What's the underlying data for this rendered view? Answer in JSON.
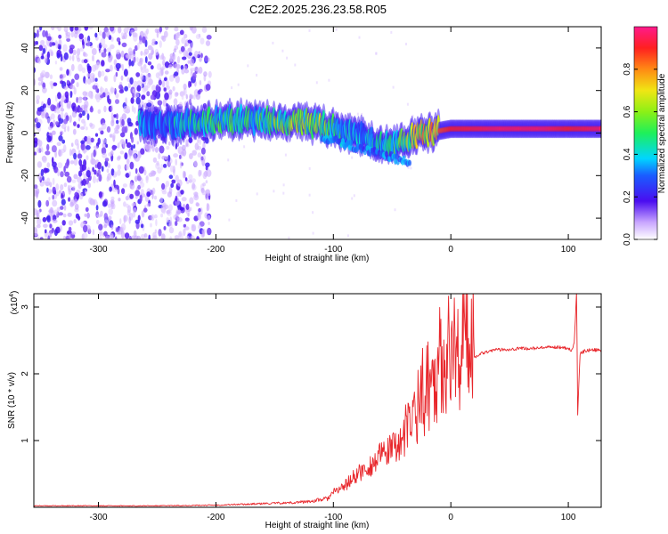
{
  "title": "C2E2.2025.236.23.58.R05",
  "colors": {
    "snr_line": "#e8262b",
    "axis": "#000000",
    "ridge": "#4a1df0"
  },
  "chart_data": [
    {
      "type": "heatmap",
      "xlabel": "Height of straight line (km)",
      "ylabel": "Frequency (Hz)",
      "xlim": [
        -355,
        128
      ],
      "ylim": [
        -50,
        50
      ],
      "xticks": [
        -300,
        -200,
        -100,
        0,
        100
      ],
      "yticks": [
        -40,
        -20,
        0,
        20,
        40
      ],
      "colorbar": {
        "label": "Normalized spectral amplitude",
        "range": [
          0,
          1
        ],
        "ticks": [
          "0.0",
          "0.2",
          "0.4",
          "0.6",
          "0.8"
        ],
        "colormap": "rainbow"
      },
      "noise_region_x": [
        -355,
        -205
      ],
      "ridge": {
        "x": [
          -265,
          -250,
          -230,
          -210,
          -190,
          -170,
          -150,
          -130,
          -110,
          -100,
          -90,
          -80,
          -70,
          -60,
          -50,
          -40,
          -30,
          -20,
          -10,
          0,
          20,
          40,
          60,
          80,
          100,
          128
        ],
        "frequency": [
          5,
          4,
          4,
          5,
          6,
          6,
          5.5,
          5,
          4,
          2,
          0,
          -1,
          -3,
          -5,
          -6,
          -3,
          -1,
          0,
          1,
          2,
          2,
          2,
          2,
          2,
          2,
          2
        ],
        "amplitude": [
          0.4,
          0.35,
          0.45,
          0.5,
          0.5,
          0.5,
          0.6,
          0.6,
          0.65,
          0.5,
          0.45,
          0.4,
          0.4,
          0.45,
          0.5,
          0.6,
          0.7,
          0.8,
          0.85,
          0.9,
          0.92,
          0.95,
          0.95,
          0.95,
          0.9,
          0.95
        ]
      }
    },
    {
      "type": "line",
      "xlabel": "Height of straight line (km)",
      "ylabel": "SNR (10 * v/v)",
      "y_multiplier": "(x10",
      "y_multiplier_exp": "4",
      "y_multiplier_close": ")",
      "xlim": [
        -355,
        128
      ],
      "ylim": [
        0,
        3.2
      ],
      "xticks": [
        -300,
        -200,
        -100,
        0,
        100
      ],
      "yticks": [
        1,
        2,
        3
      ],
      "series": [
        {
          "x": [
            -355,
            -300,
            -250,
            -200,
            -180,
            -160,
            -140,
            -120,
            -105,
            -100,
            -90,
            -80,
            -70,
            -60,
            -50,
            -40,
            -35,
            -30,
            -25,
            -20,
            -15,
            -10,
            -5,
            0,
            5,
            10,
            15,
            20,
            25,
            30,
            35,
            40,
            50,
            60,
            70,
            80,
            90,
            95,
            100,
            103,
            105,
            107,
            108,
            110,
            115,
            120,
            128
          ],
          "y": [
            0.02,
            0.02,
            0.02,
            0.03,
            0.04,
            0.05,
            0.06,
            0.08,
            0.12,
            0.2,
            0.3,
            0.45,
            0.55,
            0.7,
            0.8,
            0.95,
            1.1,
            1.3,
            1.5,
            1.6,
            1.75,
            1.9,
            2.0,
            2.05,
            2.1,
            2.15,
            2.2,
            2.25,
            2.3,
            2.33,
            2.35,
            2.36,
            2.37,
            2.38,
            2.38,
            2.39,
            2.4,
            2.4,
            2.38,
            2.35,
            2.45,
            3.2,
            1.4,
            2.3,
            2.35,
            2.36,
            2.35
          ]
        }
      ]
    }
  ]
}
